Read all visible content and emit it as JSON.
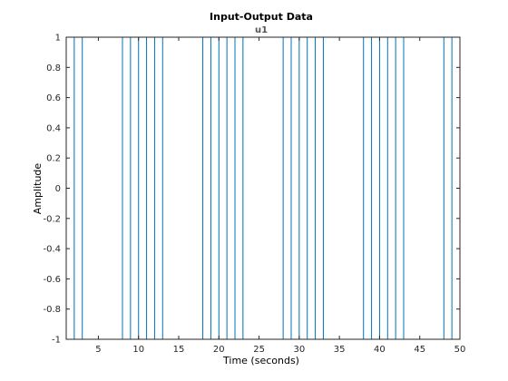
{
  "chart_data": {
    "type": "line",
    "title": "Input-Output Data",
    "subtitle": "u1",
    "xlabel": "Time (seconds)",
    "ylabel": "Amplitude",
    "xlim": [
      1,
      50
    ],
    "ylim": [
      -1,
      1
    ],
    "xticks": [
      5,
      10,
      15,
      20,
      25,
      30,
      35,
      40,
      45,
      50
    ],
    "xticklabels": [
      "5",
      "10",
      "15",
      "20",
      "25",
      "30",
      "35",
      "40",
      "45",
      "50"
    ],
    "yticks": [
      -1,
      -0.8,
      -0.6,
      -0.4,
      -0.2,
      0,
      0.2,
      0.4,
      0.6,
      0.8,
      1
    ],
    "yticklabels": [
      "-1",
      "-0.8",
      "-0.6",
      "-0.4",
      "-0.2",
      "0",
      "0.2",
      "0.4",
      "0.6",
      "0.8",
      "1"
    ],
    "grid": false,
    "series_color": "#0072bd",
    "series": [
      {
        "x": [
          1,
          2,
          2,
          3,
          3,
          8,
          8,
          9,
          9,
          10,
          10,
          11,
          11,
          12,
          12,
          13,
          13,
          18,
          18,
          19,
          19,
          20,
          20,
          21,
          21,
          22,
          22,
          23,
          23,
          28,
          28,
          29,
          29,
          30,
          30,
          31,
          31,
          32,
          32,
          33,
          33,
          38,
          38,
          39,
          39,
          40,
          40,
          41,
          41,
          42,
          42,
          43,
          43,
          48,
          48,
          49,
          49,
          50
        ],
        "y": [
          1,
          1,
          -1,
          -1,
          1,
          1,
          -1,
          -1,
          1,
          1,
          -1,
          -1,
          1,
          1,
          -1,
          -1,
          1,
          1,
          -1,
          -1,
          1,
          1,
          -1,
          -1,
          1,
          1,
          -1,
          -1,
          1,
          1,
          -1,
          -1,
          1,
          1,
          -1,
          -1,
          1,
          1,
          -1,
          -1,
          1,
          1,
          -1,
          -1,
          1,
          1,
          -1,
          -1,
          1,
          1,
          -1,
          -1,
          1,
          1,
          -1,
          -1,
          1,
          1
        ]
      }
    ]
  }
}
